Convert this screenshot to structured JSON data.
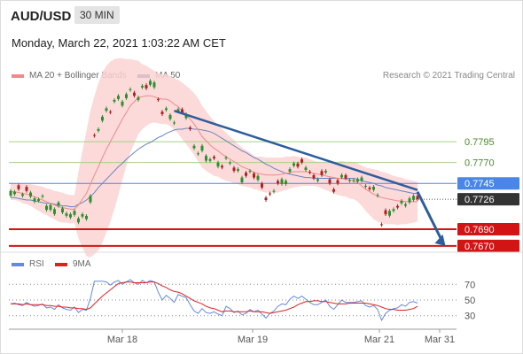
{
  "header": {
    "pair": "AUD/USD",
    "timeframe": "30 MIN"
  },
  "timestamp": "Monday, March 22, 2021 1:03:22 AM CET",
  "legend_main": [
    {
      "label": "MA 20 + Bollinger Bands",
      "color": "#f08a8a"
    },
    {
      "label": "MA 50",
      "color": "#2d4e8a"
    }
  ],
  "credit": "Research © 2021 Trading Central",
  "legend_rsi": [
    {
      "label": "RSI",
      "color": "#6688dd"
    },
    {
      "label": "9MA",
      "color": "#dd2222"
    }
  ],
  "colors": {
    "up": "#2f8f2f",
    "down": "#b02020",
    "band": "#fbd4d4",
    "ma20": "#f08a8a",
    "ma50": "#6a85c0",
    "trend": "#2d5d9e"
  },
  "chart_data": {
    "type": "candlestick",
    "y_range": [
      0.7655,
      0.788
    ],
    "x_labels": [
      "Mar 18",
      "Mar 19",
      "Mar 21",
      "Mar 31"
    ],
    "levels": [
      {
        "value": 0.7795,
        "label": "0.7795",
        "kind": "resistance",
        "color": "#a8d08a"
      },
      {
        "value": 0.777,
        "label": "0.7770",
        "kind": "resistance",
        "color": "#a8d08a"
      },
      {
        "value": 0.7745,
        "label": "0.7745",
        "kind": "pivot",
        "color": "#4a86e8"
      },
      {
        "value": 0.7726,
        "label": "0.7726",
        "kind": "last_price",
        "color": "#333333"
      },
      {
        "value": 0.769,
        "label": "0.7690",
        "kind": "support",
        "color": "#d21414"
      },
      {
        "value": 0.767,
        "label": "0.7670",
        "kind": "support",
        "color": "#d21414"
      }
    ],
    "close": [
      0.7736,
      0.7735,
      0.7738,
      0.7732,
      0.7736,
      0.7734,
      0.7727,
      0.7726,
      0.773,
      0.7718,
      0.7719,
      0.7714,
      0.7722,
      0.7715,
      0.7709,
      0.7708,
      0.7712,
      0.7703,
      0.7708,
      0.7706,
      0.773,
      0.7802,
      0.781,
      0.7825,
      0.7835,
      0.783,
      0.7845,
      0.785,
      0.7843,
      0.7852,
      0.7858,
      0.785,
      0.7848,
      0.7862,
      0.7859,
      0.7868,
      0.7866,
      0.7845,
      0.7828,
      0.7835,
      0.7827,
      0.7818,
      0.7834,
      0.783,
      0.7828,
      0.781,
      0.779,
      0.7781,
      0.779,
      0.7778,
      0.7774,
      0.7775,
      0.777,
      0.7764,
      0.7776,
      0.777,
      0.776,
      0.7762,
      0.7752,
      0.7754,
      0.776,
      0.7752,
      0.7754,
      0.774,
      0.7725,
      0.7732,
      0.7736,
      0.7745,
      0.775,
      0.7748,
      0.7762,
      0.7769,
      0.7765,
      0.777,
      0.7764,
      0.7758,
      0.7751,
      0.775,
      0.7755,
      0.776,
      0.7745,
      0.7735,
      0.7745,
      0.7755,
      0.7751,
      0.7749,
      0.7749,
      0.775,
      0.7752,
      0.7742,
      0.7738,
      0.7741,
      0.7731,
      0.7695,
      0.7708,
      0.7712,
      0.7714,
      0.7716,
      0.7724,
      0.772,
      0.7727,
      0.773,
      0.7726
    ],
    "open_offset": [
      -6,
      -3,
      5,
      -2,
      5,
      -5,
      -4,
      -2,
      -1,
      -5,
      -6,
      -6,
      -4,
      -5,
      -3,
      -4,
      -5,
      -5,
      -3,
      -4,
      -8,
      1,
      -2,
      -5,
      -3,
      1,
      -2,
      -4,
      -5,
      -5,
      -1,
      4,
      -3,
      -2,
      4,
      -5,
      -6,
      1,
      3,
      -2,
      -5,
      -1,
      -3,
      4,
      -5,
      2,
      -3,
      -1,
      -6,
      -6,
      -2,
      2,
      -5,
      2,
      -1,
      -1,
      4,
      -2,
      -6,
      4,
      -1,
      5,
      -5,
      5,
      3,
      1,
      -1,
      3,
      -6,
      -4,
      -3,
      -3,
      4,
      4,
      -3,
      1,
      4,
      -2,
      5,
      -2,
      5,
      3,
      4,
      -3,
      4,
      -1,
      -1,
      -3,
      -4,
      -1,
      2,
      -4,
      -1,
      1,
      5,
      -6,
      -2,
      2,
      -3,
      -2,
      -5,
      -5,
      4
    ],
    "ma20": [
      0.7735,
      0.7735,
      0.7734,
      0.7733,
      0.7732,
      0.7731,
      0.7729,
      0.7727,
      0.7725,
      0.7723,
      0.7721,
      0.7719,
      0.7717,
      0.7716,
      0.7715,
      0.7714,
      0.7714,
      0.7719,
      0.7726,
      0.7733,
      0.7744,
      0.7755,
      0.7765,
      0.7776,
      0.7786,
      0.7795,
      0.7804,
      0.7813,
      0.7822,
      0.783,
      0.7838,
      0.7843,
      0.7848,
      0.7849,
      0.785,
      0.785,
      0.7849,
      0.7847,
      0.7846,
      0.7846,
      0.7844,
      0.784,
      0.7837,
      0.7832,
      0.7827,
      0.7822,
      0.7816,
      0.7809,
      0.7801,
      0.7796,
      0.7791,
      0.7787,
      0.7784,
      0.778,
      0.7777,
      0.7774,
      0.7771,
      0.7768,
      0.7765,
      0.7763,
      0.7761,
      0.7758,
      0.7757,
      0.7756,
      0.7755,
      0.7755,
      0.7755,
      0.7755,
      0.7756,
      0.7757,
      0.7758,
      0.7759,
      0.7759,
      0.7759,
      0.7759,
      0.7758,
      0.7757,
      0.7756,
      0.7755,
      0.7754,
      0.7753,
      0.7752,
      0.7751,
      0.7751,
      0.775,
      0.7749,
      0.7748,
      0.7746,
      0.7742,
      0.7738,
      0.7735,
      0.7732,
      0.773,
      0.7728,
      0.7727,
      0.7726,
      0.7725,
      0.7724,
      0.7724,
      0.7723,
      0.7723,
      0.7723,
      0.7723
    ],
    "ma50": [
      0.7728,
      0.7728,
      0.7727,
      0.7726,
      0.7725,
      0.7725,
      0.7724,
      0.7723,
      0.7722,
      0.7721,
      0.7721,
      0.772,
      0.7719,
      0.7718,
      0.7718,
      0.7717,
      0.7717,
      0.772,
      0.7722,
      0.7725,
      0.7729,
      0.7734,
      0.774,
      0.7745,
      0.775,
      0.7755,
      0.776,
      0.7765,
      0.7769,
      0.7774,
      0.7778,
      0.7782,
      0.7786,
      0.7789,
      0.7792,
      0.7794,
      0.7797,
      0.78,
      0.7802,
      0.7805,
      0.7807,
      0.7809,
      0.781,
      0.781,
      0.7811,
      0.7811,
      0.781,
      0.781,
      0.7809,
      0.7808,
      0.7807,
      0.7805,
      0.7802,
      0.7799,
      0.7796,
      0.7793,
      0.779,
      0.7787,
      0.7784,
      0.7782,
      0.7779,
      0.7776,
      0.7774,
      0.7771,
      0.7768,
      0.7766,
      0.7763,
      0.7761,
      0.7759,
      0.7757,
      0.7756,
      0.7755,
      0.7754,
      0.7753,
      0.7752,
      0.7752,
      0.7751,
      0.7751,
      0.7751,
      0.7751,
      0.7751,
      0.7751,
      0.7751,
      0.7751,
      0.7751,
      0.7751,
      0.7751,
      0.775,
      0.7748,
      0.7747,
      0.7746,
      0.7745,
      0.7743,
      0.7742,
      0.774,
      0.7739,
      0.7738,
      0.7737,
      0.7736,
      0.7735,
      0.7734,
      0.7733,
      0.7733
    ],
    "band_width": [
      0.001,
      0.001,
      0.001,
      0.0012,
      0.0012,
      0.0013,
      0.0014,
      0.0015,
      0.0016,
      0.0016,
      0.0017,
      0.0017,
      0.0018,
      0.0018,
      0.0017,
      0.0017,
      0.0017,
      0.004,
      0.0058,
      0.0075,
      0.0088,
      0.0095,
      0.01,
      0.0102,
      0.01,
      0.0096,
      0.009,
      0.0082,
      0.0073,
      0.0064,
      0.0056,
      0.005,
      0.0044,
      0.0039,
      0.0036,
      0.0033,
      0.0031,
      0.003,
      0.003,
      0.003,
      0.003,
      0.0031,
      0.0032,
      0.0034,
      0.0035,
      0.0036,
      0.0037,
      0.0038,
      0.0037,
      0.0036,
      0.0034,
      0.0033,
      0.0031,
      0.003,
      0.0029,
      0.0027,
      0.0026,
      0.0024,
      0.0023,
      0.0022,
      0.0021,
      0.002,
      0.002,
      0.0021,
      0.0021,
      0.0021,
      0.0021,
      0.0021,
      0.002,
      0.002,
      0.0019,
      0.0019,
      0.0018,
      0.0017,
      0.0017,
      0.0016,
      0.0015,
      0.0015,
      0.0016,
      0.0017,
      0.0018,
      0.0019,
      0.002,
      0.0021,
      0.0021,
      0.0022,
      0.0022,
      0.0023,
      0.0024,
      0.0026,
      0.0028,
      0.003,
      0.0031,
      0.0031,
      0.0031,
      0.003,
      0.0029,
      0.0029,
      0.0028,
      0.0027,
      0.0026,
      0.0025,
      0.0024
    ],
    "trendline": {
      "from": {
        "index": 41,
        "value": 0.7832
      },
      "to": {
        "index": 102,
        "value": 0.7737
      }
    },
    "forecast_arrow": {
      "from": {
        "index": 102,
        "value": 0.7735
      },
      "to": {
        "index": 109,
        "value": 0.767
      }
    },
    "rsi": {
      "levels": [
        70,
        50,
        30
      ],
      "y_range": [
        15,
        85
      ],
      "rsi": [
        45,
        46,
        44,
        43,
        47,
        44,
        42,
        43,
        45,
        40,
        41,
        38,
        44,
        40,
        38,
        37,
        41,
        34,
        38,
        37,
        52,
        74,
        74,
        74,
        73,
        69,
        73,
        75,
        70,
        73,
        76,
        72,
        70,
        75,
        72,
        75,
        73,
        60,
        50,
        56,
        52,
        47,
        57,
        55,
        53,
        44,
        36,
        33,
        39,
        34,
        33,
        35,
        32,
        30,
        42,
        39,
        34,
        36,
        31,
        33,
        38,
        35,
        37,
        32,
        27,
        33,
        36,
        42,
        45,
        44,
        51,
        55,
        52,
        55,
        51,
        47,
        44,
        44,
        47,
        50,
        42,
        38,
        44,
        50,
        47,
        47,
        47,
        48,
        49,
        43,
        41,
        43,
        38,
        24,
        33,
        37,
        39,
        40,
        44,
        42,
        47,
        48,
        46
      ],
      "ma9": [
        45,
        45,
        45,
        44,
        45,
        44,
        44,
        44,
        44,
        43,
        43,
        42,
        42,
        41,
        41,
        40,
        40,
        39,
        39,
        38,
        40,
        45,
        50,
        55,
        59,
        63,
        67,
        71,
        72,
        73,
        73,
        72,
        72,
        72,
        72,
        73,
        73,
        71,
        68,
        66,
        63,
        61,
        60,
        58,
        55,
        52,
        49,
        47,
        45,
        42,
        40,
        39,
        37,
        35,
        36,
        36,
        35,
        35,
        35,
        35,
        36,
        35,
        35,
        35,
        34,
        33,
        34,
        35,
        36,
        37,
        39,
        41,
        44,
        46,
        48,
        48,
        49,
        49,
        48,
        48,
        47,
        46,
        45,
        45,
        45,
        46,
        46,
        46,
        46,
        46,
        45,
        44,
        43,
        41,
        39,
        38,
        38,
        37,
        37,
        37,
        38,
        39,
        42
      ]
    }
  }
}
